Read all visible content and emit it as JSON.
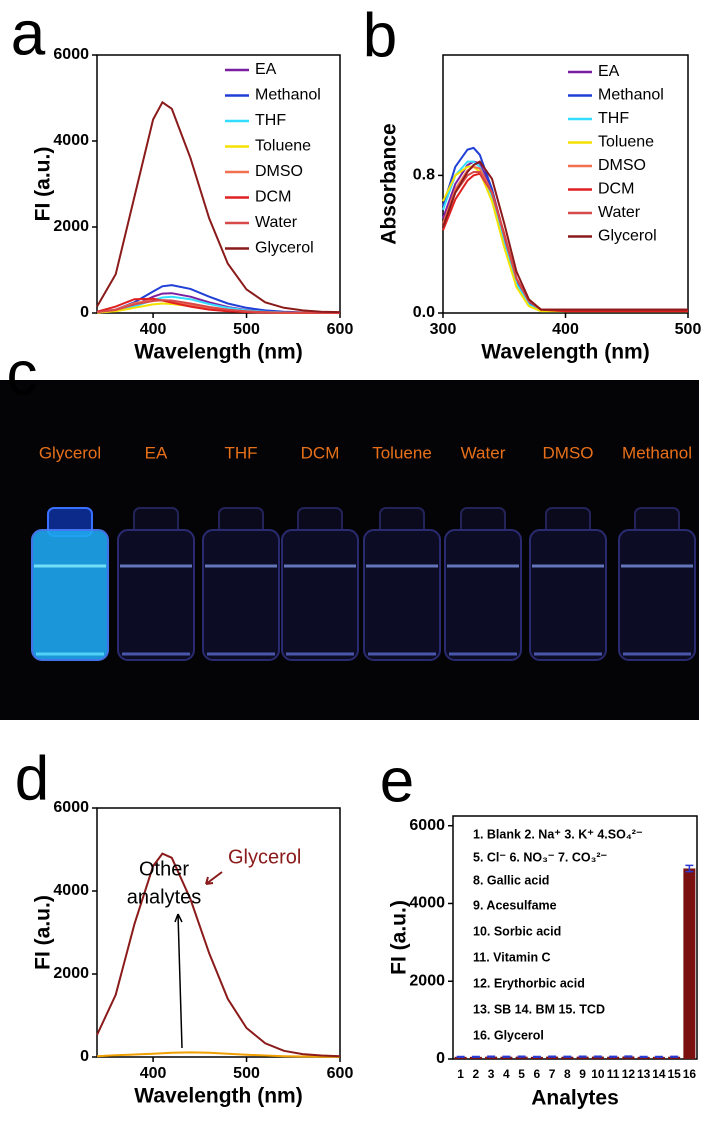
{
  "chart_data": [
    {
      "type": "line",
      "panel_label": "a",
      "xlabel": "Wavelength (nm)",
      "ylabel": "FI (a.u.)",
      "xlim": [
        340,
        600
      ],
      "xticks": [
        400,
        500,
        600
      ],
      "ylim": [
        0,
        6000
      ],
      "yticks": [
        0,
        2000,
        4000,
        6000
      ],
      "legend": "upper right",
      "x": [
        340,
        360,
        380,
        400,
        410,
        420,
        440,
        460,
        480,
        500,
        520,
        540,
        560,
        580,
        600
      ],
      "series": [
        {
          "name": "EA",
          "color": "#7b1fa2",
          "values": [
            20,
            60,
            180,
            380,
            450,
            460,
            380,
            250,
            140,
            70,
            35,
            15,
            10,
            5,
            5
          ]
        },
        {
          "name": "Methanol",
          "color": "#1f3fd6",
          "values": [
            30,
            80,
            250,
            500,
            620,
            650,
            560,
            380,
            220,
            120,
            60,
            30,
            15,
            10,
            5
          ]
        },
        {
          "name": "THF",
          "color": "#33ddff",
          "values": [
            20,
            50,
            150,
            300,
            360,
            380,
            320,
            210,
            120,
            60,
            30,
            15,
            8,
            5,
            3
          ]
        },
        {
          "name": "Toluene",
          "color": "#f5e100",
          "values": [
            10,
            40,
            120,
            200,
            220,
            210,
            160,
            100,
            55,
            25,
            12,
            6,
            3,
            2,
            1
          ]
        },
        {
          "name": "DMSO",
          "color": "#f07050",
          "values": [
            20,
            80,
            230,
            300,
            290,
            260,
            180,
            110,
            60,
            30,
            15,
            8,
            4,
            2,
            1
          ]
        },
        {
          "name": "DCM",
          "color": "#e02020",
          "values": [
            30,
            150,
            320,
            330,
            290,
            240,
            150,
            80,
            40,
            20,
            10,
            5,
            3,
            2,
            1
          ]
        },
        {
          "name": "Water",
          "color": "#d84a4a",
          "values": [
            20,
            70,
            200,
            280,
            300,
            290,
            220,
            140,
            80,
            40,
            20,
            10,
            5,
            3,
            2
          ]
        },
        {
          "name": "Glycerol",
          "color": "#8b1a1a",
          "values": [
            150,
            900,
            2700,
            4500,
            4900,
            4750,
            3600,
            2200,
            1150,
            550,
            250,
            120,
            60,
            30,
            20
          ]
        }
      ]
    },
    {
      "type": "line",
      "panel_label": "b",
      "xlabel": "Wavelength (nm)",
      "ylabel": "Absorbance",
      "xlim": [
        300,
        500
      ],
      "xticks": [
        300,
        400,
        500
      ],
      "ylim": [
        0,
        1.5
      ],
      "yticks": [
        {
          "value": 0,
          "label": "0.0"
        },
        0.8
      ],
      "legend": "upper right",
      "x": [
        300,
        310,
        320,
        325,
        330,
        340,
        350,
        360,
        370,
        380,
        400,
        450,
        500
      ],
      "series": [
        {
          "name": "EA",
          "color": "#7b1fa2",
          "values": [
            0.55,
            0.75,
            0.86,
            0.88,
            0.87,
            0.72,
            0.45,
            0.2,
            0.07,
            0.02,
            0.02,
            0.02,
            0.02
          ]
        },
        {
          "name": "Methanol",
          "color": "#1f3fd6",
          "values": [
            0.62,
            0.85,
            0.95,
            0.96,
            0.92,
            0.72,
            0.42,
            0.18,
            0.06,
            0.02,
            0.02,
            0.02,
            0.02
          ]
        },
        {
          "name": "THF",
          "color": "#33ddff",
          "values": [
            0.6,
            0.8,
            0.88,
            0.88,
            0.85,
            0.68,
            0.4,
            0.17,
            0.05,
            0.01,
            0.01,
            0.01,
            0.01
          ]
        },
        {
          "name": "Toluene",
          "color": "#f5e100",
          "values": [
            0.65,
            0.8,
            0.85,
            0.85,
            0.82,
            0.65,
            0.38,
            0.15,
            0.04,
            0.01,
            0.01,
            0.01,
            0.01
          ]
        },
        {
          "name": "DMSO",
          "color": "#f07050",
          "values": [
            0.52,
            0.72,
            0.83,
            0.85,
            0.84,
            0.7,
            0.45,
            0.2,
            0.07,
            0.02,
            0.02,
            0.02,
            0.02
          ]
        },
        {
          "name": "DCM",
          "color": "#e02020",
          "values": [
            0.48,
            0.66,
            0.77,
            0.8,
            0.81,
            0.7,
            0.46,
            0.2,
            0.07,
            0.02,
            0.01,
            0.01,
            0.01
          ]
        },
        {
          "name": "Water",
          "color": "#d84a4a",
          "values": [
            0.5,
            0.7,
            0.8,
            0.82,
            0.82,
            0.7,
            0.45,
            0.2,
            0.07,
            0.02,
            0.02,
            0.02,
            0.02
          ]
        },
        {
          "name": "Glycerol",
          "color": "#8b1a1a",
          "values": [
            0.5,
            0.7,
            0.82,
            0.86,
            0.88,
            0.78,
            0.52,
            0.24,
            0.08,
            0.02,
            0.02,
            0.02,
            0.02
          ]
        }
      ]
    },
    {
      "type": "photo",
      "panel_label": "c",
      "label_color": "#e8701a",
      "labels": [
        "Glycerol",
        "EA",
        "THF",
        "DCM",
        "Toluene",
        "Water",
        "DMSO",
        "Methanol"
      ]
    },
    {
      "type": "line",
      "panel_label": "d",
      "xlabel": "Wavelength (nm)",
      "ylabel": "FI (a.u.)",
      "xlim": [
        340,
        600
      ],
      "xticks": [
        400,
        500,
        600
      ],
      "ylim": [
        0,
        6000
      ],
      "yticks": [
        0,
        2000,
        4000,
        6000
      ],
      "annotations": [
        "Glycerol",
        "Other",
        "analytes"
      ],
      "x": [
        340,
        360,
        380,
        400,
        410,
        420,
        440,
        460,
        480,
        500,
        520,
        540,
        560,
        580,
        600
      ],
      "series": [
        {
          "color": "#f0a000",
          "values": [
            20,
            40,
            60,
            80,
            90,
            100,
            110,
            100,
            80,
            55,
            35,
            20,
            12,
            8,
            5
          ]
        },
        {
          "color": "#8b1a1a",
          "values": [
            530,
            1500,
            3200,
            4600,
            4900,
            4800,
            3800,
            2500,
            1400,
            700,
            330,
            150,
            70,
            35,
            20
          ]
        }
      ]
    },
    {
      "type": "bar",
      "panel_label": "e",
      "xlabel": "Analytes",
      "ylabel": "FI (a.u.)",
      "color": "#7a1010",
      "error_color": "#2a3ad0",
      "ylim": [
        0,
        6250
      ],
      "yticks": [
        0,
        2000,
        4000,
        6000
      ],
      "categories": [
        "1",
        "2",
        "3",
        "4",
        "5",
        "6",
        "7",
        "8",
        "9",
        "10",
        "11",
        "12",
        "13",
        "14",
        "15",
        "16"
      ],
      "values": [
        55,
        55,
        60,
        58,
        60,
        55,
        62,
        58,
        60,
        62,
        58,
        65,
        55,
        55,
        58,
        4900
      ],
      "errors": [
        10,
        10,
        10,
        10,
        10,
        10,
        10,
        10,
        10,
        10,
        10,
        10,
        10,
        10,
        10,
        80
      ],
      "notes": [
        "1. Blank  2. Na⁺ 3. K⁺  4.SO₄²⁻",
        "5. Cl⁻   6. NO₃⁻   7. CO₃²⁻",
        "8. Gallic acid",
        "9. Acesulfame",
        "10. Sorbic acid",
        "11. Vitamin C",
        "12. Erythorbic acid",
        "13. SB   14. BM  15. TCD",
        "16. Glycerol"
      ]
    }
  ]
}
